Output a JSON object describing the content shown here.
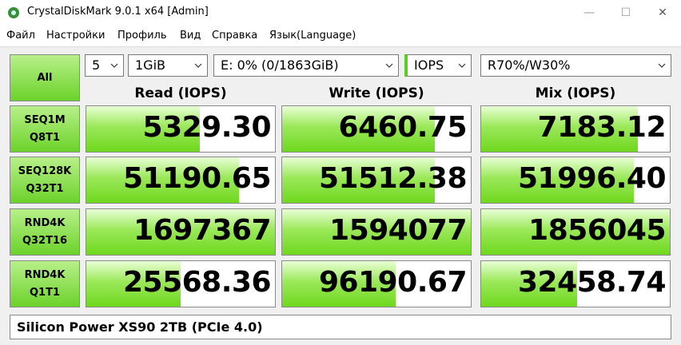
{
  "window": {
    "title": "CrystalDiskMark 9.0.1 x64 [Admin]"
  },
  "menu": [
    "Файл",
    "Настройки",
    "Профиль",
    "Вид",
    "Справка",
    "Язык(Language)"
  ],
  "controls": {
    "all_button": "All",
    "count": "5",
    "size": "1GiB",
    "drive": "E: 0% (0/1863GiB)",
    "unit": "IOPS",
    "mix": "R70%/W30%"
  },
  "columns": [
    "Read (IOPS)",
    "Write (IOPS)",
    "Mix (IOPS)"
  ],
  "rows": [
    {
      "label": [
        "SEQ1M",
        "Q8T1"
      ],
      "values": [
        "5329.30",
        "6460.75",
        "7183.12"
      ]
    },
    {
      "label": [
        "SEQ128K",
        "Q32T1"
      ],
      "values": [
        "51190.65",
        "51512.38",
        "51996.40"
      ]
    },
    {
      "label": [
        "RND4K",
        "Q32T16"
      ],
      "values": [
        "1697367",
        "1594077",
        "1856045"
      ]
    },
    {
      "label": [
        "RND4K",
        "Q1T1"
      ],
      "values": [
        "25568.36",
        "96190.67",
        "32458.74"
      ]
    }
  ],
  "footer": "Silicon Power XS90 2TB (PCIe 4.0)"
}
